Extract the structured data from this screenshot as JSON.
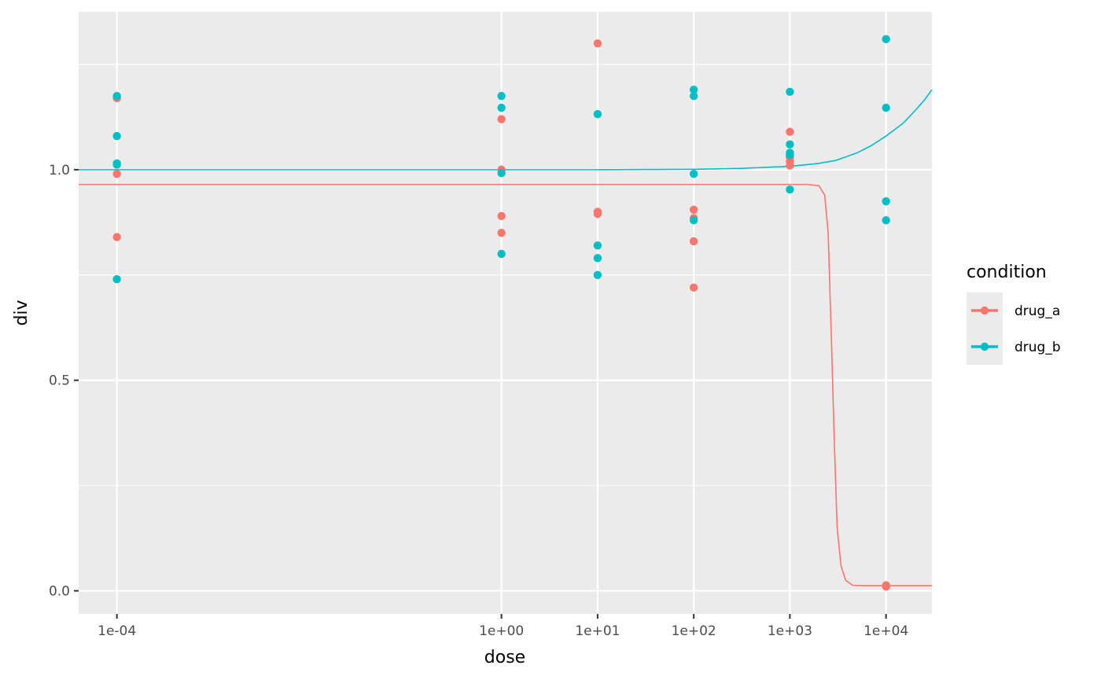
{
  "chart_data": {
    "type": "scatter",
    "xlabel": "dose",
    "ylabel": "div",
    "x_scale": "log10",
    "xlim": [
      4e-05,
      30000
    ],
    "ylim": [
      -0.055,
      1.375
    ],
    "x_ticks": [
      {
        "value": 0.0001,
        "label": "1e-04"
      },
      {
        "value": 1,
        "label": "1e+00"
      },
      {
        "value": 10,
        "label": "1e+01"
      },
      {
        "value": 100,
        "label": "1e+02"
      },
      {
        "value": 1000,
        "label": "1e+03"
      },
      {
        "value": 10000,
        "label": "1e+04"
      }
    ],
    "y_ticks": [
      {
        "value": 0.0,
        "label": "0.0"
      },
      {
        "value": 0.5,
        "label": "0.5"
      },
      {
        "value": 1.0,
        "label": "1.0"
      }
    ],
    "y_minor_ticks": [
      0.25,
      0.75,
      1.25
    ],
    "grid": true,
    "background": "#EBEBEB",
    "legend": {
      "title": "condition",
      "position": "right"
    },
    "series": [
      {
        "name": "drug_a",
        "color": "#F8766D",
        "points": [
          [
            0.0001,
            1.17
          ],
          [
            0.0001,
            0.99
          ],
          [
            0.0001,
            0.84
          ],
          [
            1,
            1.12
          ],
          [
            1,
            1.0
          ],
          [
            1,
            0.89
          ],
          [
            1,
            0.85
          ],
          [
            10,
            1.3
          ],
          [
            10,
            0.9
          ],
          [
            10,
            0.895
          ],
          [
            100,
            0.905
          ],
          [
            100,
            0.885
          ],
          [
            100,
            0.83
          ],
          [
            100,
            0.72
          ],
          [
            1000,
            1.09
          ],
          [
            1000,
            1.03
          ],
          [
            1000,
            1.02
          ],
          [
            1000,
            1.01
          ],
          [
            10000,
            0.013
          ],
          [
            10000,
            0.01
          ]
        ],
        "fit_curve": [
          [
            4e-05,
            0.965
          ],
          [
            1,
            0.965
          ],
          [
            100,
            0.965
          ],
          [
            1000,
            0.965
          ],
          [
            1500,
            0.965
          ],
          [
            2000,
            0.962
          ],
          [
            2300,
            0.94
          ],
          [
            2500,
            0.85
          ],
          [
            2700,
            0.6
          ],
          [
            2900,
            0.35
          ],
          [
            3100,
            0.15
          ],
          [
            3400,
            0.06
          ],
          [
            3800,
            0.025
          ],
          [
            4500,
            0.013
          ],
          [
            6000,
            0.012
          ],
          [
            30000,
            0.012
          ]
        ]
      },
      {
        "name": "drug_b",
        "color": "#00BFC4",
        "points": [
          [
            0.0001,
            1.175
          ],
          [
            0.0001,
            1.08
          ],
          [
            0.0001,
            1.015
          ],
          [
            0.0001,
            1.012
          ],
          [
            0.0001,
            0.74
          ],
          [
            1,
            1.175
          ],
          [
            1,
            1.147
          ],
          [
            1,
            0.992
          ],
          [
            1,
            0.8
          ],
          [
            10,
            1.132
          ],
          [
            10,
            0.82
          ],
          [
            10,
            0.79
          ],
          [
            10,
            0.75
          ],
          [
            100,
            1.19
          ],
          [
            100,
            1.175
          ],
          [
            100,
            0.99
          ],
          [
            100,
            0.88
          ],
          [
            1000,
            1.185
          ],
          [
            1000,
            1.06
          ],
          [
            1000,
            1.04
          ],
          [
            1000,
            1.035
          ],
          [
            1000,
            0.953
          ],
          [
            10000,
            1.31
          ],
          [
            10000,
            1.147
          ],
          [
            10000,
            0.925
          ],
          [
            10000,
            0.88
          ]
        ],
        "fit_curve": [
          [
            4e-05,
            1.0
          ],
          [
            1,
            1.0
          ],
          [
            10,
            1.0
          ],
          [
            100,
            1.001
          ],
          [
            300,
            1.003
          ],
          [
            1000,
            1.008
          ],
          [
            2000,
            1.015
          ],
          [
            3000,
            1.022
          ],
          [
            5000,
            1.04
          ],
          [
            7000,
            1.057
          ],
          [
            10000,
            1.08
          ],
          [
            15000,
            1.11
          ],
          [
            20000,
            1.14
          ],
          [
            25000,
            1.165
          ],
          [
            30000,
            1.19
          ]
        ]
      }
    ]
  }
}
